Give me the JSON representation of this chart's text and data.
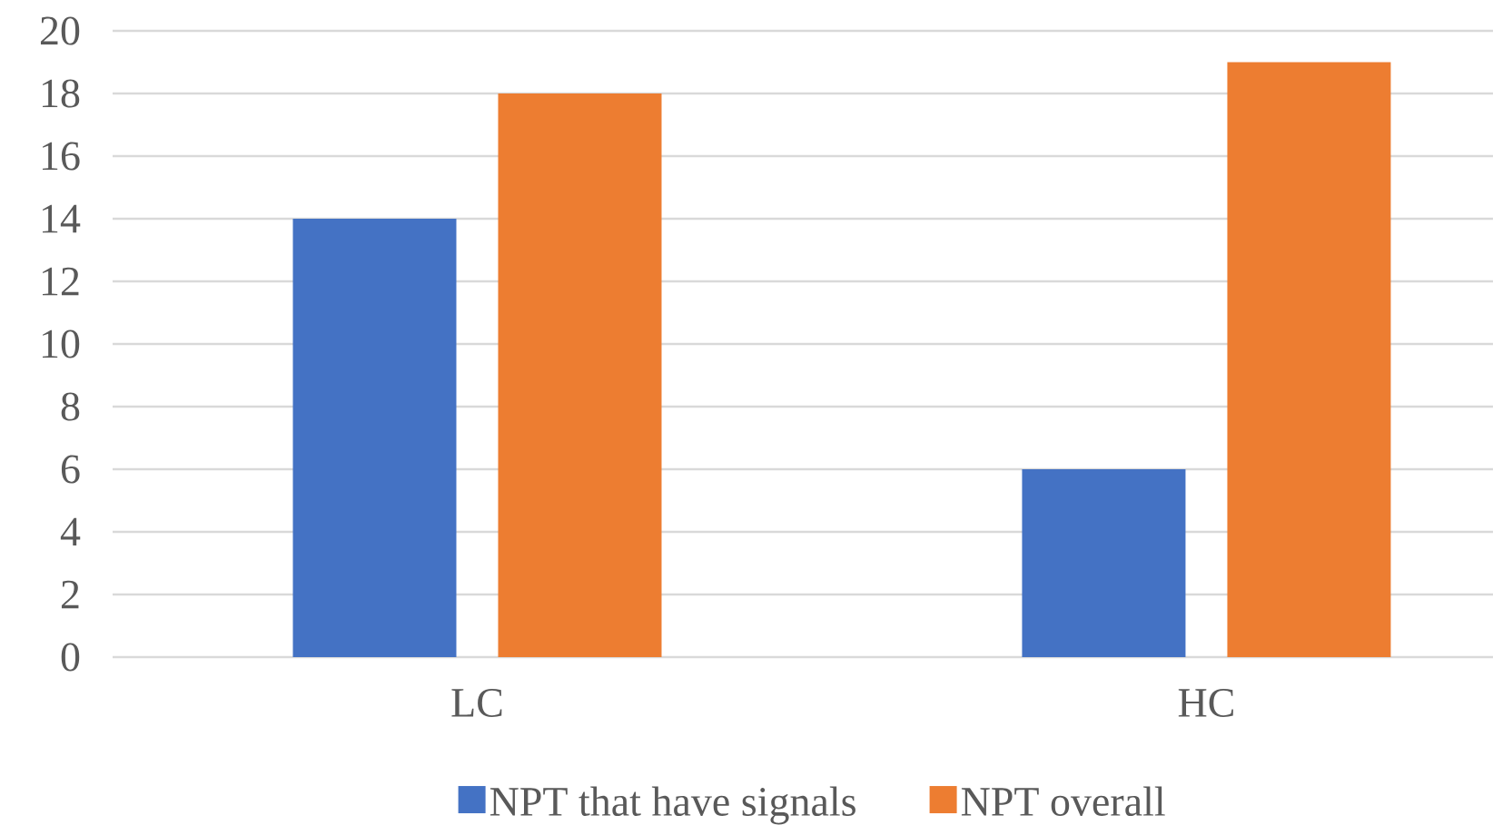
{
  "chart_data": {
    "type": "bar",
    "categories": [
      "LC",
      "HC"
    ],
    "series": [
      {
        "name": "NPT that have signals",
        "color": "#4472c4",
        "values": [
          14,
          6
        ]
      },
      {
        "name": "NPT overall",
        "color": "#ed7d31",
        "values": [
          18,
          19
        ]
      }
    ],
    "ylim": [
      0,
      20
    ],
    "yticks": [
      0,
      2,
      4,
      6,
      8,
      10,
      12,
      14,
      16,
      18,
      20
    ],
    "grid": "y",
    "legend": "bottom"
  }
}
